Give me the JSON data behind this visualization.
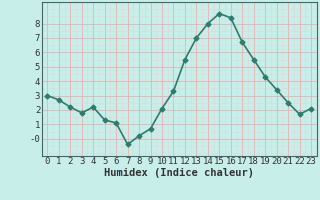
{
  "x": [
    0,
    1,
    2,
    3,
    4,
    5,
    6,
    7,
    8,
    9,
    10,
    11,
    12,
    13,
    14,
    15,
    16,
    17,
    18,
    19,
    20,
    21,
    22,
    23
  ],
  "y": [
    3.0,
    2.7,
    2.2,
    1.8,
    2.2,
    1.3,
    1.1,
    -0.4,
    0.2,
    0.7,
    2.1,
    3.3,
    5.5,
    7.0,
    8.0,
    8.7,
    8.4,
    6.7,
    5.5,
    4.3,
    3.4,
    2.5,
    1.7,
    2.1
  ],
  "line_color": "#2d7d6f",
  "marker": "D",
  "marker_size": 2.5,
  "bg_color": "#c8eeea",
  "grid_major_color": "#e8b0b0",
  "grid_minor_color": "#ddd8d8",
  "xlabel": "Humidex (Indice chaleur)",
  "xlim": [
    -0.5,
    23.5
  ],
  "ylim": [
    -1.2,
    9.5
  ],
  "yticks": [
    0,
    1,
    2,
    3,
    4,
    5,
    6,
    7,
    8
  ],
  "ytick_labels": [
    "-0",
    "1",
    "2",
    "3",
    "4",
    "5",
    "6",
    "7",
    "8"
  ],
  "xticks": [
    0,
    1,
    2,
    3,
    4,
    5,
    6,
    7,
    8,
    9,
    10,
    11,
    12,
    13,
    14,
    15,
    16,
    17,
    18,
    19,
    20,
    21,
    22,
    23
  ],
  "tick_font_size": 6.5,
  "xlabel_font_size": 7.5,
  "line_width": 1.2,
  "spine_color": "#446666"
}
